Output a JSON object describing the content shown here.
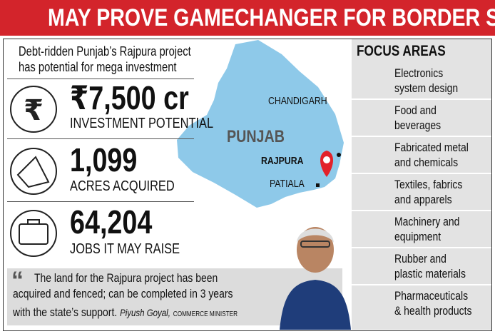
{
  "header": {
    "title": "MAY PROVE GAMECHANGER FOR BORDER STATE"
  },
  "intro": {
    "lines": [
      "Debt-ridden Punjab’s Rajpura project",
      "has potential for mega investment"
    ]
  },
  "stats": [
    {
      "value": "₹7,500 cr",
      "label": "INVESTMENT POTENTIAL"
    },
    {
      "value": "1,099",
      "label": "ACRES ACQUIRED"
    },
    {
      "value": "64,204",
      "label": "JOBS IT MAY RAISE"
    }
  ],
  "map": {
    "state": "PUNJAB",
    "places": [
      "CHANDIGARH",
      "RAJPURA",
      "PATIALA"
    ]
  },
  "focus": {
    "title": "FOCUS AREAS",
    "items": [
      [
        "Electronics",
        "system design"
      ],
      [
        "Food and",
        "beverages"
      ],
      [
        "Fabricated metal",
        "and chemicals"
      ],
      [
        "Textiles, fabrics",
        "and apparels"
      ],
      [
        "Machinery and",
        "equipment"
      ],
      [
        "Rubber and",
        "plastic materials"
      ],
      [
        "Pharmaceuticals",
        "& health products"
      ]
    ]
  },
  "quote": {
    "lines": [
      "The land for the Rajpura project has been",
      "acquired and fenced; can be completed in 3 years",
      "with the state’s support."
    ],
    "name": "Piyush Goyal,",
    "role": "COMMERCE MINISTER"
  }
}
